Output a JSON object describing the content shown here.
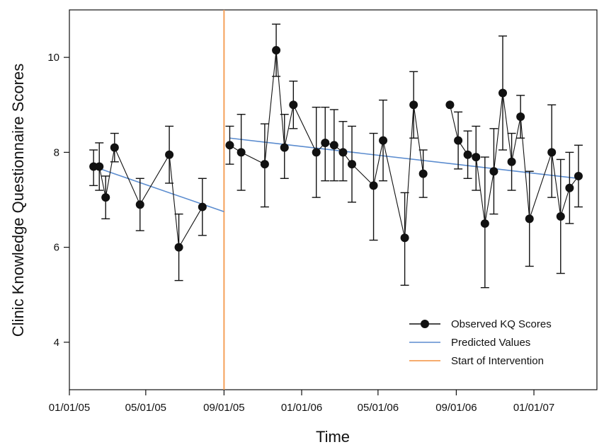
{
  "chart_data": {
    "type": "line",
    "xlabel": "Time",
    "ylabel": "Clinic Knowledge Questionnaire Scores",
    "x_ticks": [
      "01/01/05",
      "05/01/05",
      "09/01/05",
      "01/01/06",
      "05/01/06",
      "09/01/06",
      "01/01/07"
    ],
    "y_ticks": [
      4,
      6,
      8,
      10
    ],
    "xlim": [
      "01/01/05",
      "04/10/07"
    ],
    "ylim": [
      3,
      11
    ],
    "grid": false,
    "legend_position": "bottom-right",
    "legend": [
      {
        "name": "Observed KQ Scores",
        "color": "#111111",
        "kind": "line-marker"
      },
      {
        "name": "Predicted Values",
        "color": "#5b8ccf",
        "kind": "line"
      },
      {
        "name": "Start of Intervention",
        "color": "#f5a05a",
        "kind": "line"
      }
    ],
    "intervention_date": "09/01/05",
    "observed_segments": [
      [
        {
          "x": "02/08/05",
          "y": 7.7,
          "lo": 7.3,
          "hi": 8.05
        },
        {
          "x": "02/17/05",
          "y": 7.7,
          "lo": 7.2,
          "hi": 8.2
        },
        {
          "x": "02/27/05",
          "y": 7.05,
          "lo": 6.6,
          "hi": 7.5
        },
        {
          "x": "03/13/05",
          "y": 8.1,
          "lo": 7.8,
          "hi": 8.4
        },
        {
          "x": "04/22/05",
          "y": 6.9,
          "lo": 6.35,
          "hi": 7.45
        },
        {
          "x": "06/07/05",
          "y": 7.95,
          "lo": 7.35,
          "hi": 8.55
        },
        {
          "x": "06/22/05",
          "y": 6.0,
          "lo": 5.3,
          "hi": 6.7
        },
        {
          "x": "07/29/05",
          "y": 6.85,
          "lo": 6.25,
          "hi": 7.45
        }
      ],
      [
        {
          "x": "09/10/05",
          "y": 8.15,
          "lo": 7.75,
          "hi": 8.55
        },
        {
          "x": "09/28/05",
          "y": 8.0,
          "lo": 7.2,
          "hi": 8.8
        },
        {
          "x": "11/04/05",
          "y": 7.75,
          "lo": 6.85,
          "hi": 8.6
        },
        {
          "x": "11/22/05",
          "y": 10.15,
          "lo": 9.6,
          "hi": 10.7
        },
        {
          "x": "12/05/05",
          "y": 8.1,
          "lo": 7.45,
          "hi": 8.8
        },
        {
          "x": "12/19/05",
          "y": 9.0,
          "lo": 8.5,
          "hi": 9.5
        },
        {
          "x": "01/24/06",
          "y": 8.0,
          "lo": 7.05,
          "hi": 8.95
        },
        {
          "x": "02/07/06",
          "y": 8.2,
          "lo": 7.4,
          "hi": 8.95
        },
        {
          "x": "02/21/06",
          "y": 8.15,
          "lo": 7.4,
          "hi": 8.9
        },
        {
          "x": "03/07/06",
          "y": 8.0,
          "lo": 7.4,
          "hi": 8.65
        },
        {
          "x": "03/21/06",
          "y": 7.75,
          "lo": 6.95,
          "hi": 8.55
        },
        {
          "x": "04/24/06",
          "y": 7.3,
          "lo": 6.15,
          "hi": 8.4
        },
        {
          "x": "05/09/06",
          "y": 8.25,
          "lo": 7.4,
          "hi": 9.1
        },
        {
          "x": "06/12/06",
          "y": 6.2,
          "lo": 5.2,
          "hi": 7.15
        },
        {
          "x": "06/26/06",
          "y": 9.0,
          "lo": 8.3,
          "hi": 9.7
        },
        {
          "x": "07/11/06",
          "y": 7.55,
          "lo": 7.05,
          "hi": 8.05
        }
      ],
      [
        {
          "x": "08/22/06",
          "y": 9.0,
          "lo": 9.0,
          "hi": 9.0
        },
        {
          "x": "09/04/06",
          "y": 8.25,
          "lo": 7.65,
          "hi": 8.85
        },
        {
          "x": "09/19/06",
          "y": 7.95,
          "lo": 7.45,
          "hi": 8.45
        },
        {
          "x": "10/02/06",
          "y": 7.9,
          "lo": 7.2,
          "hi": 8.55
        },
        {
          "x": "10/16/06",
          "y": 6.5,
          "lo": 5.15,
          "hi": 7.9
        },
        {
          "x": "10/30/06",
          "y": 7.6,
          "lo": 6.7,
          "hi": 8.5
        },
        {
          "x": "11/13/06",
          "y": 9.25,
          "lo": 8.05,
          "hi": 10.45
        },
        {
          "x": "11/27/06",
          "y": 7.8,
          "lo": 7.2,
          "hi": 8.4
        },
        {
          "x": "12/11/06",
          "y": 8.75,
          "lo": 8.3,
          "hi": 9.2
        },
        {
          "x": "12/25/06",
          "y": 6.6,
          "lo": 5.6,
          "hi": 7.6
        },
        {
          "x": "01/29/07",
          "y": 8.0,
          "lo": 7.05,
          "hi": 9.0
        },
        {
          "x": "02/12/07",
          "y": 6.65,
          "lo": 5.45,
          "hi": 7.85
        },
        {
          "x": "02/26/07",
          "y": 7.25,
          "lo": 6.5,
          "hi": 8.0
        },
        {
          "x": "03/12/07",
          "y": 7.5,
          "lo": 6.85,
          "hi": 8.15
        }
      ]
    ],
    "predicted": [
      [
        {
          "x": "02/08/05",
          "y": 7.7
        },
        {
          "x": "09/01/05",
          "y": 6.75
        }
      ],
      [
        {
          "x": "09/10/05",
          "y": 8.3
        },
        {
          "x": "03/12/07",
          "y": 7.45
        }
      ]
    ]
  }
}
